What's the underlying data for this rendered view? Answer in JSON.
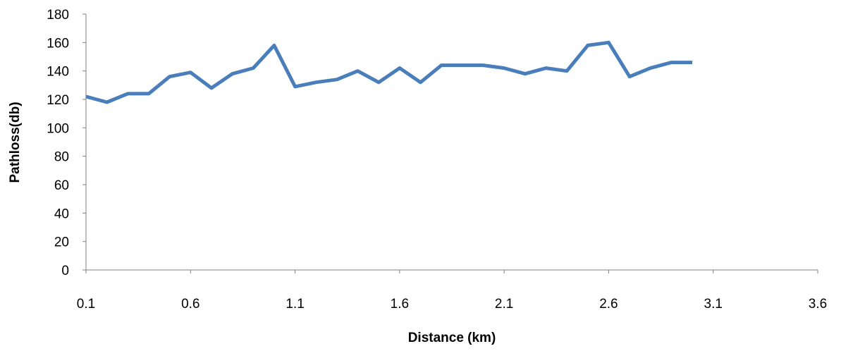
{
  "colors": {
    "line": "#4A7EBB",
    "axis": "#808080",
    "text": "#000000"
  },
  "chart_data": {
    "type": "line",
    "title": "",
    "xlabel": "Distance (km)",
    "ylabel": "Pathloss(db)",
    "xlim": [
      0.1,
      3.6
    ],
    "ylim": [
      0,
      180
    ],
    "x_ticks": [
      "0.1",
      "0.6",
      "1.1",
      "1.6",
      "2.1",
      "2.6",
      "3.1",
      "3.6"
    ],
    "y_ticks": [
      "0",
      "20",
      "40",
      "60",
      "80",
      "100",
      "120",
      "140",
      "160",
      "180"
    ],
    "grid": false,
    "legend": "none",
    "series": [
      {
        "x": [
          0.1,
          0.2,
          0.3,
          0.4,
          0.5,
          0.6,
          0.7,
          0.8,
          0.9,
          1.0,
          1.1,
          1.2,
          1.3,
          1.4,
          1.5,
          1.6,
          1.7,
          1.8,
          1.9,
          2.0,
          2.1,
          2.2,
          2.3,
          2.4,
          2.5,
          2.6,
          2.7,
          2.8,
          2.9,
          3.0
        ],
        "values": [
          122,
          118,
          124,
          124,
          136,
          139,
          128,
          138,
          142,
          158,
          129,
          132,
          134,
          140,
          132,
          142,
          132,
          144,
          144,
          144,
          142,
          138,
          142,
          140,
          158,
          160,
          136,
          142,
          146,
          146
        ]
      }
    ]
  }
}
